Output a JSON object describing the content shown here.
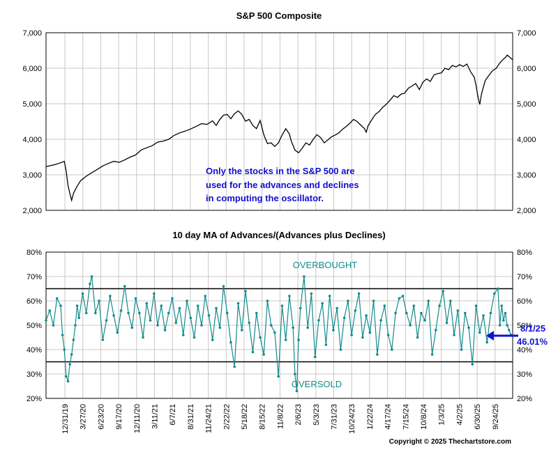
{
  "chart_data": [
    {
      "type": "line",
      "title": "S&P 500 Composite",
      "ylim": [
        2000,
        7000
      ],
      "yticks": [
        "2,000",
        "3,000",
        "4,000",
        "5,000",
        "6,000",
        "7,000"
      ],
      "grid": true,
      "annotation": [
        "Only the stocks in the S&P 500 are",
        "used for the advances and declines",
        "in computing the oscillator."
      ],
      "series": [
        {
          "name": "S&P 500",
          "color": "#000000",
          "points": [
            [
              0,
              3230
            ],
            [
              5,
              3290
            ],
            [
              8,
              3340
            ],
            [
              10,
              3380
            ],
            [
              11,
              3100
            ],
            [
              12,
              2700
            ],
            [
              13,
              2480
            ],
            [
              14,
              2280
            ],
            [
              15,
              2480
            ],
            [
              17,
              2680
            ],
            [
              19,
              2840
            ],
            [
              22,
              2960
            ],
            [
              25,
              3060
            ],
            [
              28,
              3150
            ],
            [
              31,
              3250
            ],
            [
              34,
              3320
            ],
            [
              37,
              3380
            ],
            [
              40,
              3350
            ],
            [
              43,
              3420
            ],
            [
              46,
              3500
            ],
            [
              49,
              3560
            ],
            [
              52,
              3700
            ],
            [
              55,
              3760
            ],
            [
              58,
              3820
            ],
            [
              61,
              3920
            ],
            [
              64,
              3950
            ],
            [
              67,
              4000
            ],
            [
              70,
              4110
            ],
            [
              73,
              4180
            ],
            [
              76,
              4230
            ],
            [
              79,
              4290
            ],
            [
              82,
              4360
            ],
            [
              85,
              4440
            ],
            [
              88,
              4420
            ],
            [
              91,
              4520
            ],
            [
              93,
              4390
            ],
            [
              95,
              4560
            ],
            [
              97,
              4680
            ],
            [
              99,
              4700
            ],
            [
              101,
              4580
            ],
            [
              103,
              4720
            ],
            [
              105,
              4800
            ],
            [
              107,
              4700
            ],
            [
              109,
              4510
            ],
            [
              111,
              4560
            ],
            [
              113,
              4390
            ],
            [
              115,
              4300
            ],
            [
              117,
              4530
            ],
            [
              119,
              4130
            ],
            [
              121,
              3880
            ],
            [
              123,
              3900
            ],
            [
              125,
              3800
            ],
            [
              127,
              3900
            ],
            [
              129,
              4120
            ],
            [
              131,
              4300
            ],
            [
              133,
              4150
            ],
            [
              134,
              3950
            ],
            [
              136,
              3700
            ],
            [
              138,
              3620
            ],
            [
              140,
              3750
            ],
            [
              142,
              3900
            ],
            [
              144,
              3840
            ],
            [
              146,
              4000
            ],
            [
              148,
              4130
            ],
            [
              150,
              4050
            ],
            [
              152,
              3900
            ],
            [
              154,
              3980
            ],
            [
              156,
              4070
            ],
            [
              158,
              4120
            ],
            [
              160,
              4180
            ],
            [
              162,
              4280
            ],
            [
              164,
              4360
            ],
            [
              166,
              4450
            ],
            [
              168,
              4560
            ],
            [
              170,
              4500
            ],
            [
              172,
              4400
            ],
            [
              174,
              4300
            ],
            [
              175,
              4200
            ],
            [
              176,
              4380
            ],
            [
              178,
              4550
            ],
            [
              180,
              4700
            ],
            [
              182,
              4780
            ],
            [
              184,
              4900
            ],
            [
              186,
              4990
            ],
            [
              188,
              5100
            ],
            [
              190,
              5230
            ],
            [
              192,
              5180
            ],
            [
              194,
              5270
            ],
            [
              196,
              5300
            ],
            [
              198,
              5440
            ],
            [
              200,
              5500
            ],
            [
              202,
              5570
            ],
            [
              204,
              5400
            ],
            [
              206,
              5610
            ],
            [
              208,
              5700
            ],
            [
              210,
              5630
            ],
            [
              212,
              5810
            ],
            [
              214,
              5850
            ],
            [
              216,
              5870
            ],
            [
              218,
              6000
            ],
            [
              220,
              5960
            ],
            [
              222,
              6080
            ],
            [
              224,
              6040
            ],
            [
              226,
              6100
            ],
            [
              228,
              6050
            ],
            [
              230,
              6120
            ],
            [
              232,
              5900
            ],
            [
              234,
              5750
            ],
            [
              235,
              5520
            ],
            [
              236,
              5200
            ],
            [
              237,
              4980
            ],
            [
              238,
              5280
            ],
            [
              240,
              5650
            ],
            [
              242,
              5800
            ],
            [
              244,
              5930
            ],
            [
              246,
              6000
            ],
            [
              248,
              6150
            ],
            [
              250,
              6260
            ],
            [
              251,
              6300
            ],
            [
              252,
              6370
            ],
            [
              253,
              6330
            ],
            [
              254,
              6280
            ],
            [
              255,
              6240
            ]
          ]
        }
      ]
    },
    {
      "type": "line",
      "title": "10 day MA of Advances/(Advances plus Declines)",
      "ylim": [
        20,
        80
      ],
      "yticks": [
        "20%",
        "30%",
        "40%",
        "50%",
        "60%",
        "70%",
        "80%"
      ],
      "categories": [
        "12/31/19",
        "3/27/20",
        "6/23/20",
        "9/17/20",
        "12/11/20",
        "3/11/21",
        "6/7/21",
        "8/31/21",
        "11/24/21",
        "2/22/22",
        "5/18/22",
        "8/15/22",
        "11/8/22",
        "2/6/23",
        "5/3/23",
        "7/31/23",
        "10/24/23",
        "1/22/24",
        "4/17/24",
        "7/15/24",
        "10/8/24",
        "1/3/25",
        "4/2/25",
        "6/30/25",
        "9/24/25"
      ],
      "overbought": 65,
      "oversold": 35,
      "overbought_label": "OVERBOUGHT",
      "oversold_label": "OVERSOLD",
      "latest": {
        "date": "8/1/25",
        "value": "46.01%",
        "numeric": 46.01
      },
      "grid": true,
      "series": [
        {
          "name": "10 day MA",
          "color": "#138a8a",
          "points": [
            [
              0,
              52
            ],
            [
              2,
              56
            ],
            [
              4,
              50
            ],
            [
              6,
              61
            ],
            [
              8,
              58
            ],
            [
              9,
              46
            ],
            [
              10,
              40
            ],
            [
              11,
              29
            ],
            [
              12,
              27
            ],
            [
              13,
              34
            ],
            [
              14,
              38
            ],
            [
              15,
              44
            ],
            [
              16,
              50
            ],
            [
              17,
              58
            ],
            [
              18,
              53
            ],
            [
              20,
              63
            ],
            [
              22,
              55
            ],
            [
              24,
              67
            ],
            [
              25,
              70
            ],
            [
              27,
              55
            ],
            [
              29,
              60
            ],
            [
              31,
              44
            ],
            [
              33,
              52
            ],
            [
              35,
              62
            ],
            [
              37,
              54
            ],
            [
              39,
              47
            ],
            [
              41,
              56
            ],
            [
              43,
              66
            ],
            [
              45,
              55
            ],
            [
              47,
              49
            ],
            [
              49,
              61
            ],
            [
              51,
              55
            ],
            [
              53,
              45
            ],
            [
              55,
              59
            ],
            [
              57,
              52
            ],
            [
              59,
              63
            ],
            [
              61,
              50
            ],
            [
              63,
              58
            ],
            [
              65,
              48
            ],
            [
              67,
              55
            ],
            [
              69,
              61
            ],
            [
              71,
              51
            ],
            [
              73,
              57
            ],
            [
              75,
              46
            ],
            [
              77,
              60
            ],
            [
              79,
              53
            ],
            [
              81,
              45
            ],
            [
              83,
              58
            ],
            [
              85,
              50
            ],
            [
              87,
              62
            ],
            [
              89,
              54
            ],
            [
              91,
              44
            ],
            [
              93,
              57
            ],
            [
              95,
              49
            ],
            [
              97,
              66
            ],
            [
              99,
              55
            ],
            [
              101,
              43
            ],
            [
              103,
              33
            ],
            [
              105,
              59
            ],
            [
              107,
              48
            ],
            [
              109,
              64
            ],
            [
              111,
              51
            ],
            [
              113,
              39
            ],
            [
              115,
              55
            ],
            [
              117,
              45
            ],
            [
              119,
              38
            ],
            [
              121,
              60
            ],
            [
              123,
              50
            ],
            [
              125,
              47
            ],
            [
              127,
              29
            ],
            [
              129,
              58
            ],
            [
              131,
              44
            ],
            [
              133,
              62
            ],
            [
              135,
              49
            ],
            [
              136,
              30
            ],
            [
              137,
              23
            ],
            [
              138,
              44
            ],
            [
              139,
              57
            ],
            [
              141,
              70
            ],
            [
              143,
              49
            ],
            [
              145,
              63
            ],
            [
              147,
              37
            ],
            [
              149,
              52
            ],
            [
              151,
              59
            ],
            [
              153,
              42
            ],
            [
              155,
              62
            ],
            [
              157,
              48
            ],
            [
              159,
              57
            ],
            [
              161,
              40
            ],
            [
              163,
              53
            ],
            [
              165,
              60
            ],
            [
              167,
              46
            ],
            [
              169,
              56
            ],
            [
              171,
              63
            ],
            [
              173,
              45
            ],
            [
              175,
              54
            ],
            [
              177,
              47
            ],
            [
              179,
              60
            ],
            [
              181,
              38
            ],
            [
              183,
              52
            ],
            [
              185,
              58
            ],
            [
              187,
              46
            ],
            [
              189,
              40
            ],
            [
              191,
              55
            ],
            [
              193,
              61
            ],
            [
              195,
              62
            ],
            [
              197,
              55
            ],
            [
              199,
              50
            ],
            [
              201,
              58
            ],
            [
              203,
              45
            ],
            [
              205,
              55
            ],
            [
              207,
              52
            ],
            [
              209,
              60
            ],
            [
              211,
              38
            ],
            [
              213,
              48
            ],
            [
              215,
              58
            ],
            [
              217,
              64
            ],
            [
              219,
              51
            ],
            [
              221,
              60
            ],
            [
              223,
              46
            ],
            [
              225,
              56
            ],
            [
              227,
              40
            ],
            [
              229,
              55
            ],
            [
              231,
              49
            ],
            [
              233,
              34
            ],
            [
              235,
              58
            ],
            [
              237,
              47
            ],
            [
              239,
              54
            ],
            [
              241,
              43
            ],
            [
              243,
              55
            ],
            [
              245,
              63
            ],
            [
              247,
              65
            ],
            [
              248,
              50
            ],
            [
              249,
              58
            ],
            [
              250,
              52
            ],
            [
              251,
              55
            ],
            [
              252,
              50
            ],
            [
              253,
              48
            ],
            [
              254,
              46.01
            ]
          ]
        }
      ]
    }
  ],
  "copyright": "Copyright © 2025 Thechartstore.com"
}
